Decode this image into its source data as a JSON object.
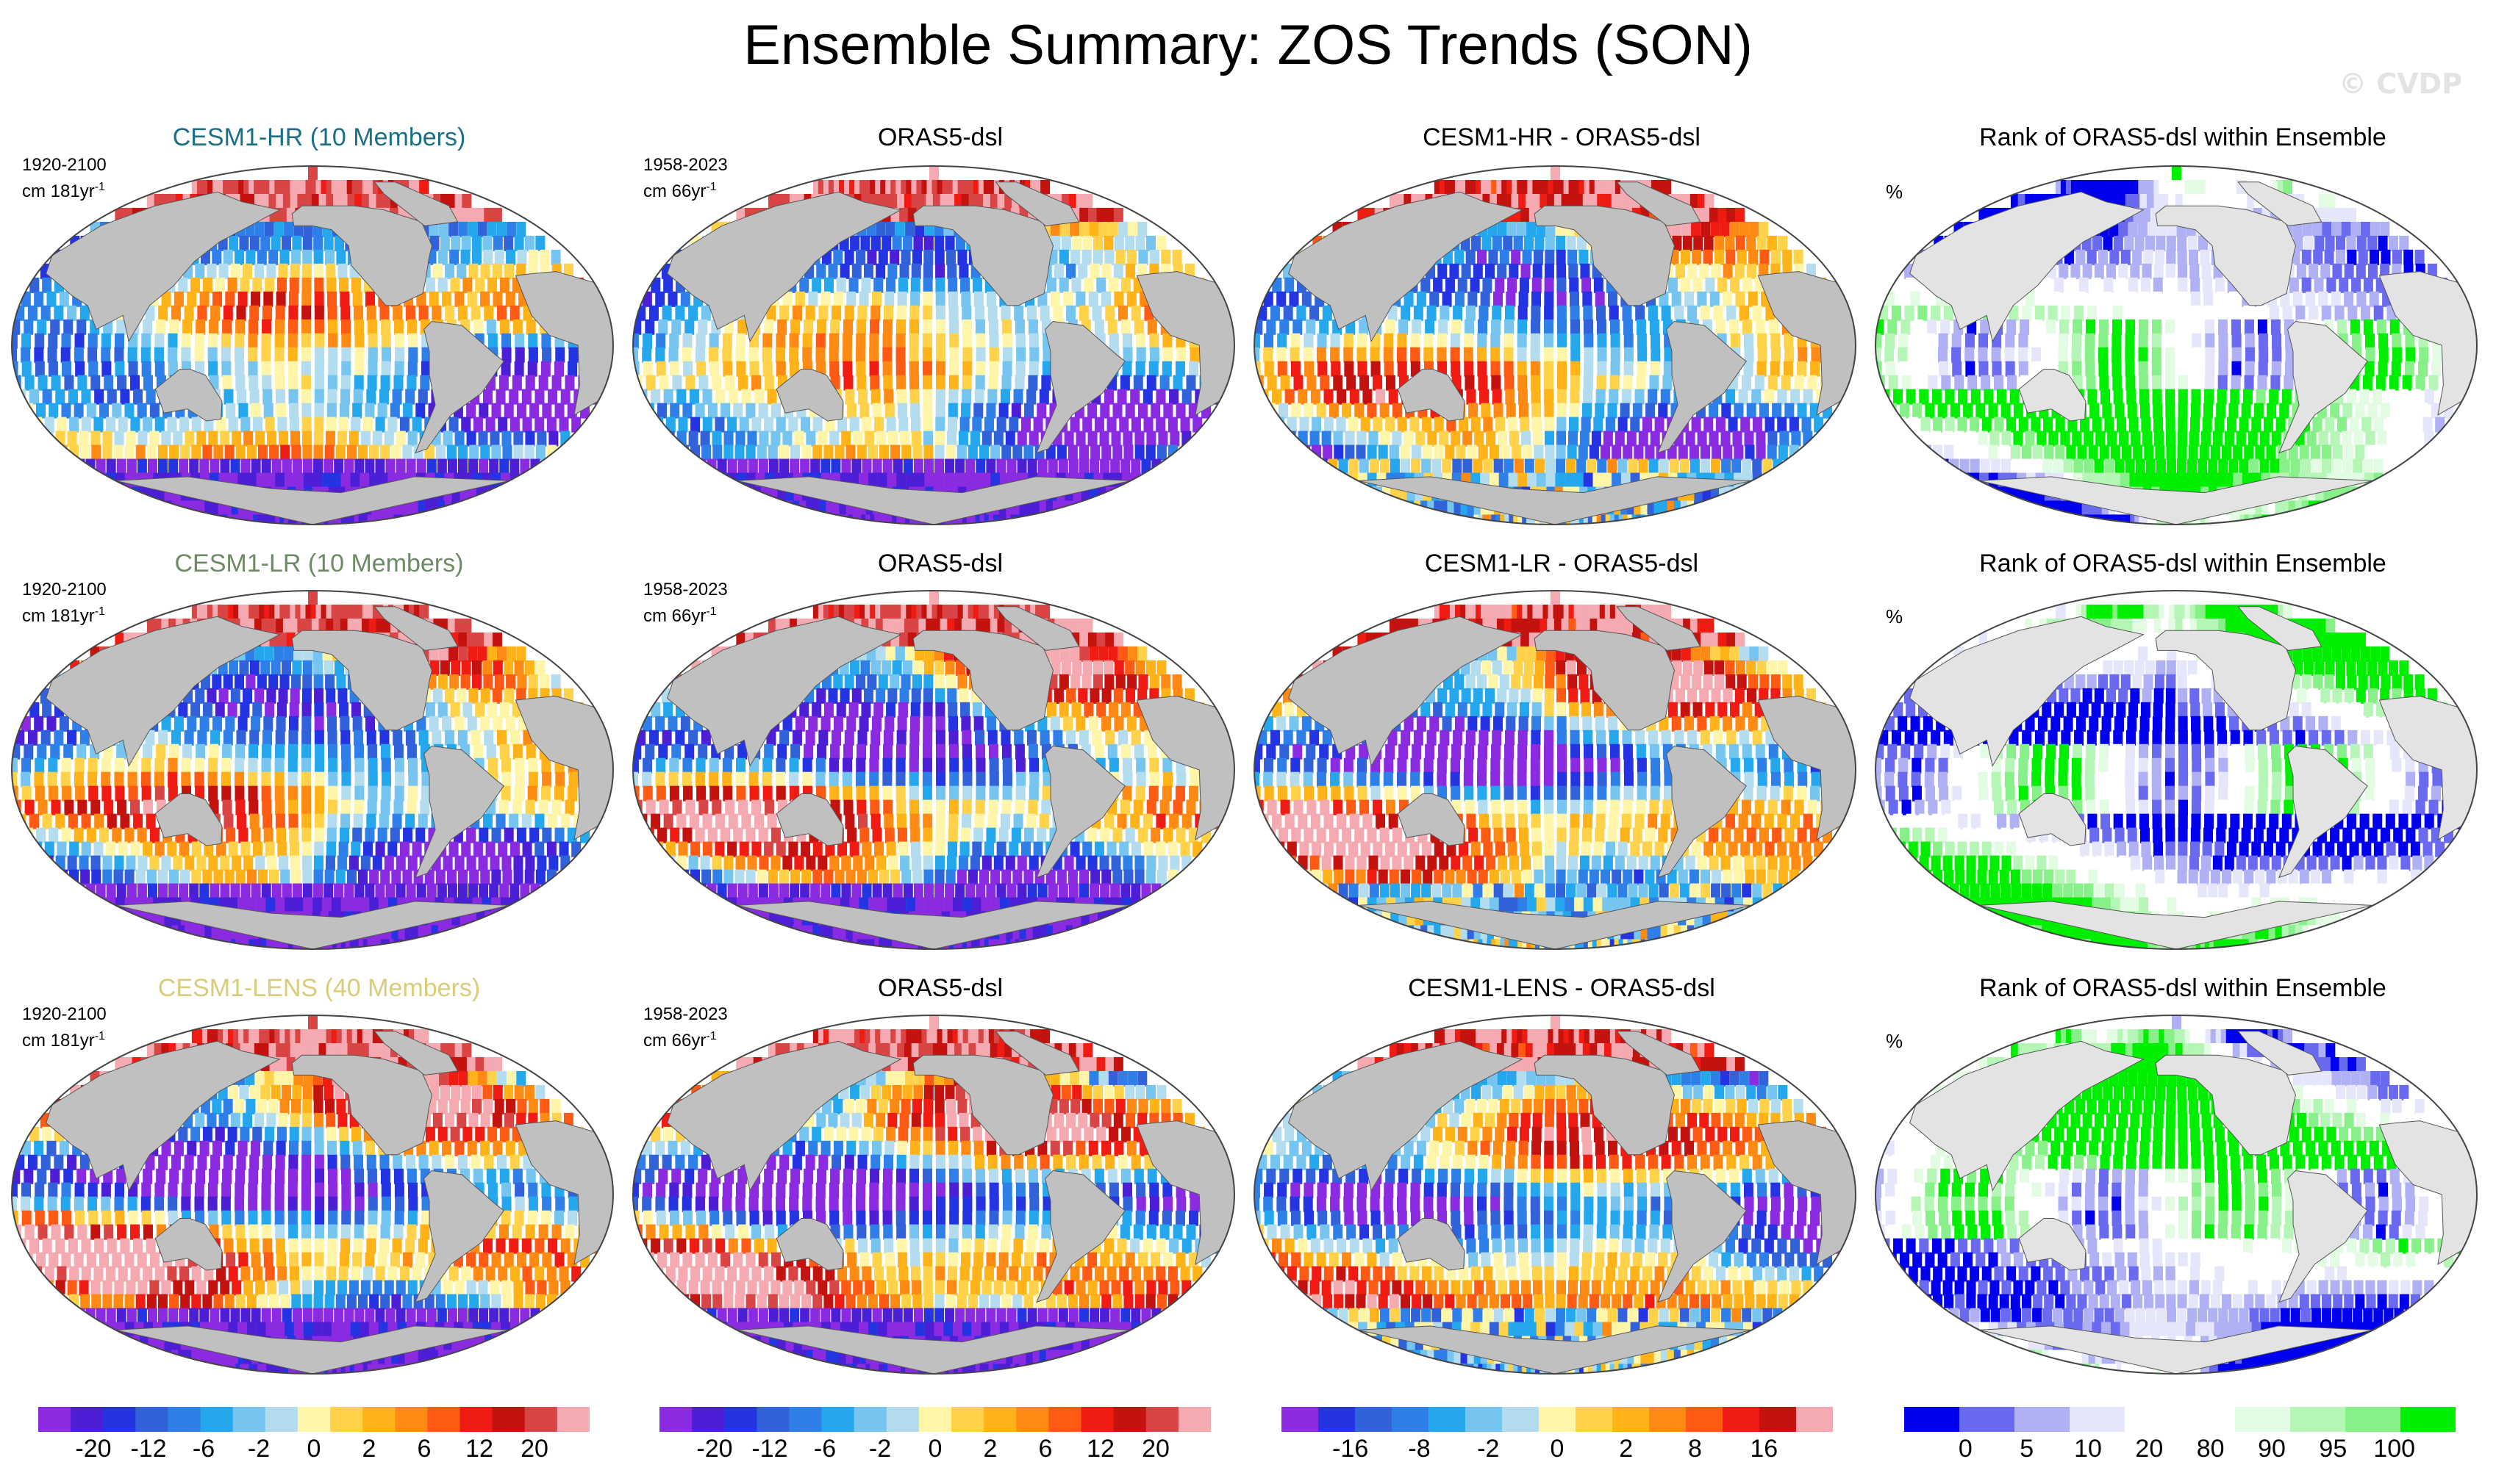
{
  "title": "Ensemble Summary: ZOS Trends (SON)",
  "watermark": "© CVDP",
  "colors": {
    "land": "#c0c0c0",
    "ocean_bg": "#e3e3e3",
    "row_title_colors": [
      "#1a6f86",
      "#6f8a66",
      "#d9cc7a"
    ],
    "trend_palette": [
      "#8a2be2",
      "#4c1ed6",
      "#2434e3",
      "#3262d9",
      "#2f7fe8",
      "#25a7ee",
      "#76c5f0",
      "#b4dcef",
      "#fff5a8",
      "#ffd24a",
      "#ffb319",
      "#ff8a13",
      "#ff5a14",
      "#f01b12",
      "#c4120f",
      "#d94545",
      "#f5a9b0"
    ],
    "diff_palette": [
      "#8a2be2",
      "#2434e3",
      "#3262d9",
      "#2f7fe8",
      "#25a7ee",
      "#76c5f0",
      "#b4dcef",
      "#fff5a8",
      "#ffd24a",
      "#ffb319",
      "#ff8a13",
      "#ff5a14",
      "#f01b12",
      "#c4120f",
      "#f5a9b0"
    ],
    "rank_palette": [
      "#0000ee",
      "#6a6af0",
      "#b0b0f5",
      "#e6e6fb",
      "#ffffff",
      "#ffffff",
      "#e2fbe2",
      "#b5f5b5",
      "#88f088",
      "#00ee00"
    ]
  },
  "rows": [
    {
      "model_title": "CESM1-HR (10 Members)",
      "model_period": "1920-2100",
      "model_unit": "cm 181yr",
      "obs_title": "ORAS5-dsl",
      "obs_period": "1958-2023",
      "obs_unit": "cm 66yr",
      "diff_title": "CESM1-HR - ORAS5-dsl",
      "rank_title": "Rank of ORAS5-dsl within Ensemble",
      "rank_unit": "%"
    },
    {
      "model_title": "CESM1-LR (10 Members)",
      "model_period": "1920-2100",
      "model_unit": "cm 181yr",
      "obs_title": "ORAS5-dsl",
      "obs_period": "1958-2023",
      "obs_unit": "cm 66yr",
      "diff_title": "CESM1-LR - ORAS5-dsl",
      "rank_title": "Rank of ORAS5-dsl within Ensemble",
      "rank_unit": "%"
    },
    {
      "model_title": "CESM1-LENS (40 Members)",
      "model_period": "1920-2100",
      "model_unit": "cm 181yr",
      "obs_title": "ORAS5-dsl",
      "obs_period": "1958-2023",
      "obs_unit": "cm 66yr",
      "diff_title": "CESM1-LENS - ORAS5-dsl",
      "rank_title": "Rank of ORAS5-dsl within Ensemble",
      "rank_unit": "%"
    }
  ],
  "unit_exponent": "-1",
  "chart_data": [
    {
      "type": "heatmap",
      "name": "colorbar-trend-model",
      "levels": [
        -20,
        -16,
        -12,
        -8,
        -6,
        -4,
        -2,
        -1,
        0,
        1,
        2,
        4,
        6,
        8,
        12,
        16,
        20
      ],
      "tick_labels": [
        "-20",
        "-12",
        "-6",
        "-2",
        "0",
        "2",
        "6",
        "12",
        "20"
      ]
    },
    {
      "type": "heatmap",
      "name": "colorbar-trend-obs",
      "levels": [
        -20,
        -16,
        -12,
        -8,
        -6,
        -4,
        -2,
        -1,
        0,
        1,
        2,
        4,
        6,
        8,
        12,
        16,
        20
      ],
      "tick_labels": [
        "-20",
        "-12",
        "-6",
        "-2",
        "0",
        "2",
        "6",
        "12",
        "20"
      ]
    },
    {
      "type": "heatmap",
      "name": "colorbar-difference",
      "levels": [
        -16,
        -12,
        -8,
        -4,
        -2,
        -1,
        0,
        1,
        2,
        4,
        8,
        12,
        16
      ],
      "tick_labels": [
        "-16",
        "-8",
        "-2",
        "0",
        "2",
        "8",
        "16"
      ]
    },
    {
      "type": "heatmap",
      "name": "colorbar-rank",
      "levels": [
        0,
        5,
        10,
        20,
        80,
        90,
        95,
        100
      ],
      "tick_labels": [
        "0",
        "5",
        "10",
        "20",
        "80",
        "90",
        "95",
        "100"
      ]
    }
  ]
}
